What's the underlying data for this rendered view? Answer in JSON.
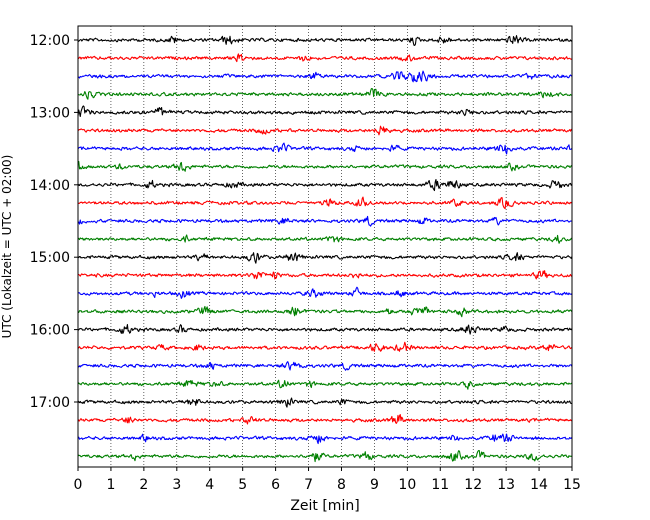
{
  "chart_data": {
    "type": "line",
    "title": "",
    "xlabel": "Zeit  [min]",
    "ylabel": "UTC (Lokalzeit = UTC + 02:00)",
    "xlim": [
      0,
      15
    ],
    "x_ticks": [
      "0",
      "1",
      "2",
      "3",
      "4",
      "5",
      "6",
      "7",
      "8",
      "9",
      "10",
      "11",
      "12",
      "13",
      "14",
      "15"
    ],
    "y_tick_labels": [
      "12:00",
      "13:00",
      "14:00",
      "15:00",
      "16:00",
      "17:00"
    ],
    "grid": "vertical dotted lines at each minute",
    "trace_interval_minutes": 15,
    "trace_colors_cycle": [
      "#000000",
      "#ff0000",
      "#0000ff",
      "#008000"
    ],
    "traces": [
      {
        "start": "12:00",
        "color": "#000000"
      },
      {
        "start": "12:15",
        "color": "#ff0000"
      },
      {
        "start": "12:30",
        "color": "#0000ff"
      },
      {
        "start": "12:45",
        "color": "#008000"
      },
      {
        "start": "13:00",
        "color": "#000000"
      },
      {
        "start": "13:15",
        "color": "#ff0000"
      },
      {
        "start": "13:30",
        "color": "#0000ff"
      },
      {
        "start": "13:45",
        "color": "#008000"
      },
      {
        "start": "14:00",
        "color": "#000000"
      },
      {
        "start": "14:15",
        "color": "#ff0000"
      },
      {
        "start": "14:30",
        "color": "#0000ff"
      },
      {
        "start": "14:45",
        "color": "#008000"
      },
      {
        "start": "15:00",
        "color": "#000000"
      },
      {
        "start": "15:15",
        "color": "#ff0000"
      },
      {
        "start": "15:30",
        "color": "#0000ff"
      },
      {
        "start": "15:45",
        "color": "#008000"
      },
      {
        "start": "16:00",
        "color": "#000000"
      },
      {
        "start": "16:15",
        "color": "#ff0000"
      },
      {
        "start": "16:30",
        "color": "#0000ff"
      },
      {
        "start": "16:45",
        "color": "#008000"
      },
      {
        "start": "17:00",
        "color": "#000000"
      },
      {
        "start": "17:15",
        "color": "#ff0000"
      },
      {
        "start": "17:30",
        "color": "#0000ff"
      },
      {
        "start": "17:45",
        "color": "#008000"
      }
    ]
  }
}
